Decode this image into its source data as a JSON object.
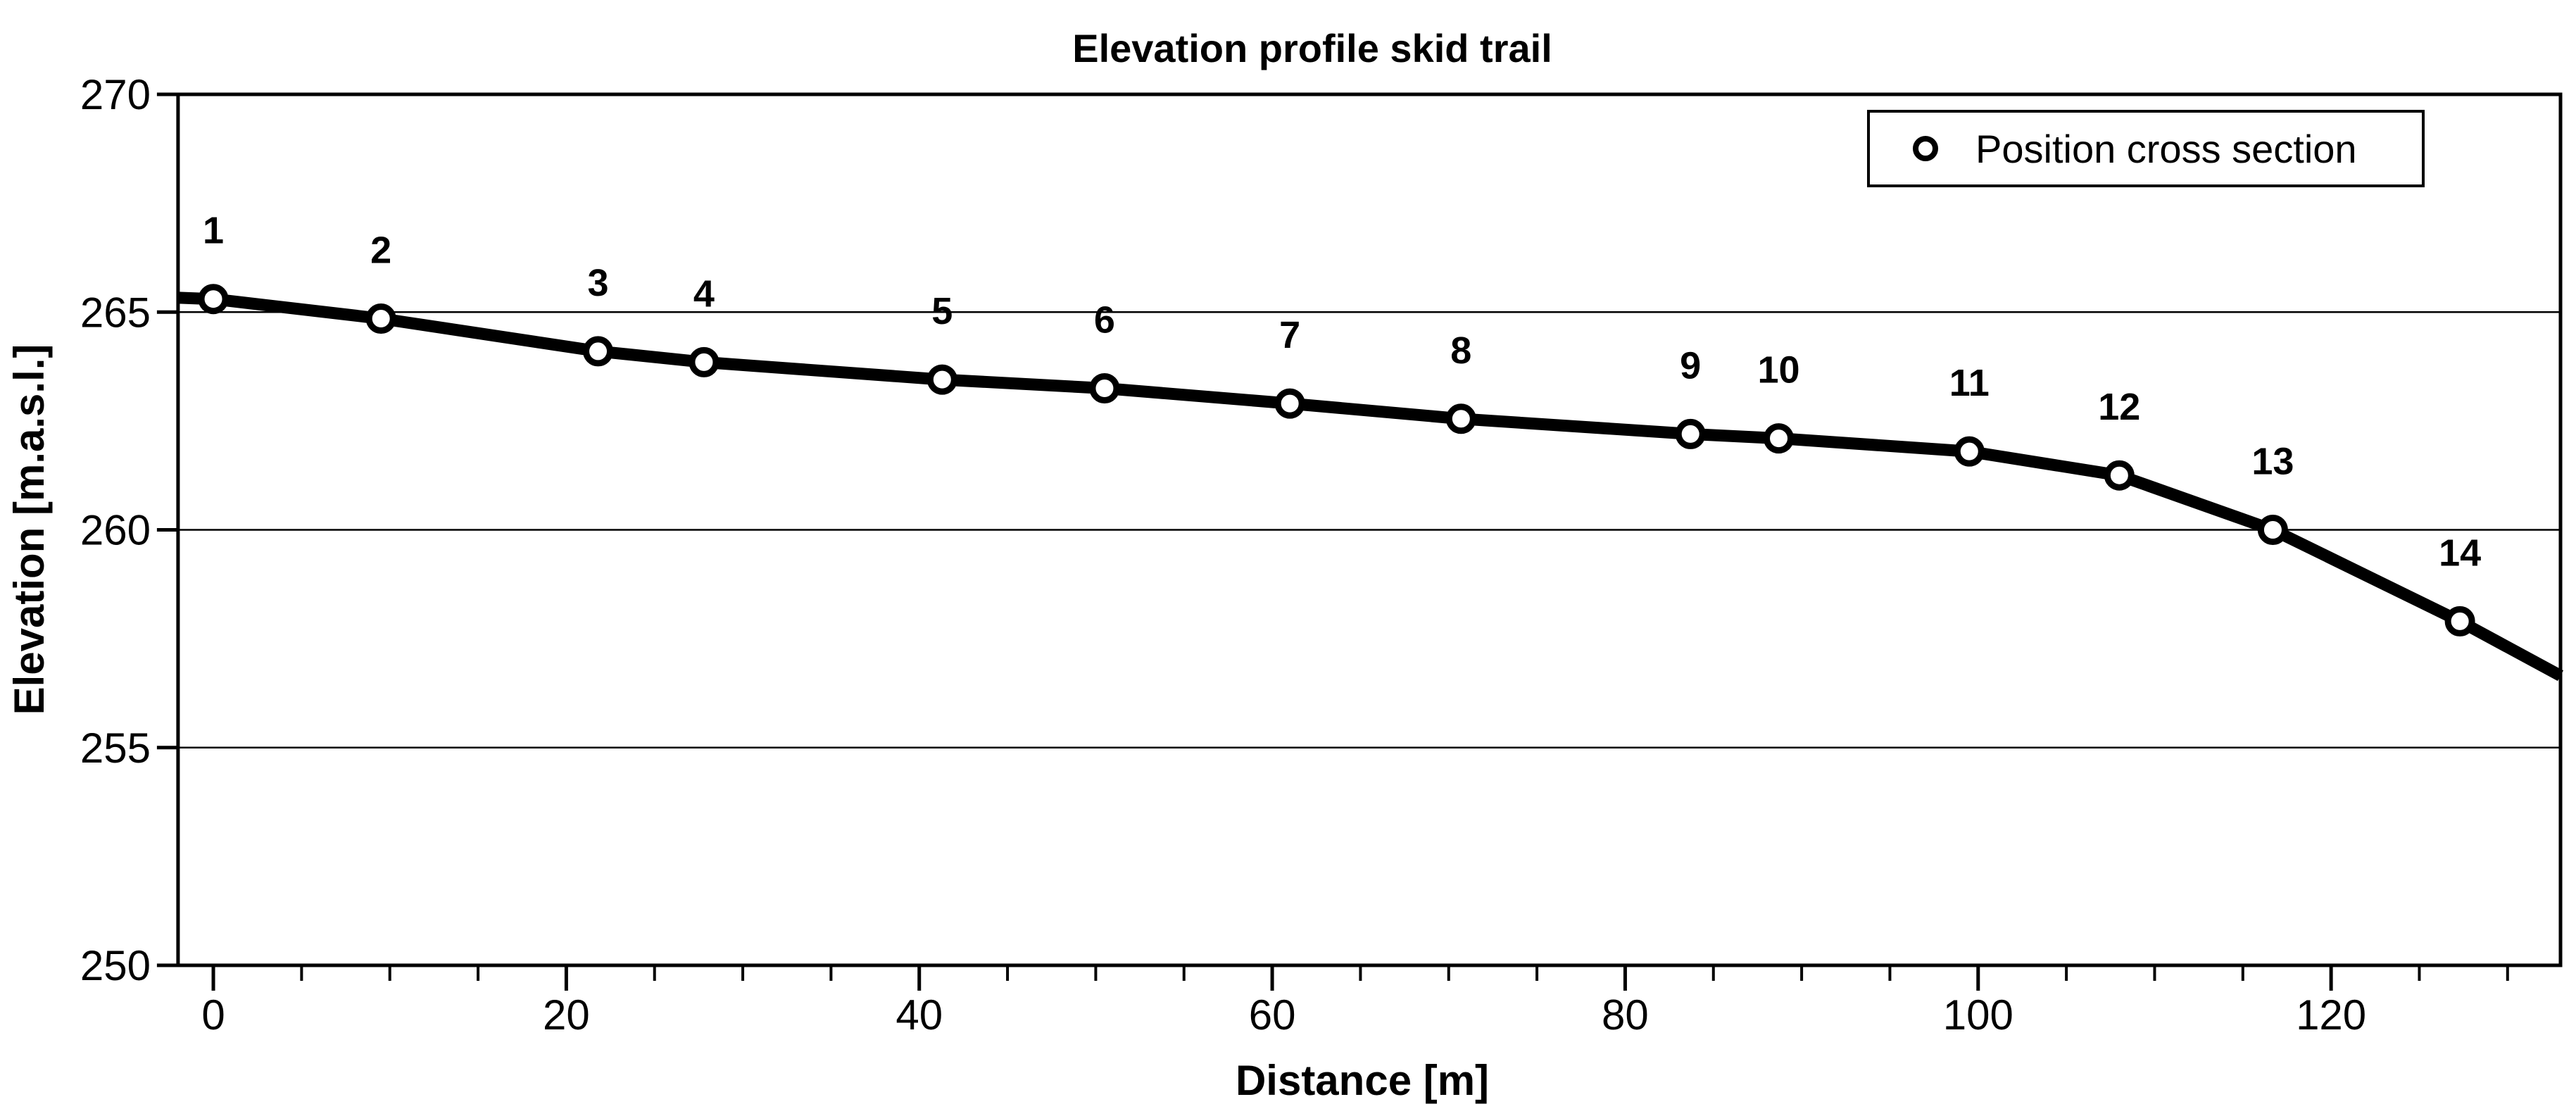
{
  "chart_data": {
    "type": "line",
    "title": "Elevation profile skid trail",
    "xlabel": "Distance [m]",
    "ylabel": "Elevation [m.a.s.l.]",
    "xlim": [
      -2,
      133
    ],
    "ylim": [
      250,
      270
    ],
    "x_major_ticks": [
      0,
      20,
      40,
      60,
      80,
      100,
      120
    ],
    "x_minor_tick_step": 5,
    "x_minor_tick_min": 0,
    "x_minor_tick_max": 130,
    "y_ticks": [
      250,
      255,
      260,
      265,
      270
    ],
    "y_gridlines": [
      255,
      260,
      265
    ],
    "grid": "horizontal-only",
    "legend_position": "top-right",
    "legend": [
      {
        "label": "Position cross section",
        "marker": "open-circle"
      }
    ],
    "series": [
      {
        "name": "Position cross section",
        "marker": "open-circle",
        "points": [
          {
            "label": "1",
            "distance_m": 0,
            "elevation_masl": 265.3
          },
          {
            "label": "2",
            "distance_m": 9.5,
            "elevation_masl": 264.85
          },
          {
            "label": "3",
            "distance_m": 21.8,
            "elevation_masl": 264.1
          },
          {
            "label": "4",
            "distance_m": 27.8,
            "elevation_masl": 263.85
          },
          {
            "label": "5",
            "distance_m": 41.3,
            "elevation_masl": 263.45
          },
          {
            "label": "6",
            "distance_m": 50.5,
            "elevation_masl": 263.25
          },
          {
            "label": "7",
            "distance_m": 61,
            "elevation_masl": 262.9
          },
          {
            "label": "8",
            "distance_m": 70.7,
            "elevation_masl": 262.55
          },
          {
            "label": "9",
            "distance_m": 83.7,
            "elevation_masl": 262.2
          },
          {
            "label": "10",
            "distance_m": 88.7,
            "elevation_masl": 262.1
          },
          {
            "label": "11",
            "distance_m": 99.5,
            "elevation_masl": 261.8
          },
          {
            "label": "12",
            "distance_m": 108,
            "elevation_masl": 261.25
          },
          {
            "label": "13",
            "distance_m": 116.7,
            "elevation_masl": 260.0
          },
          {
            "label": "14",
            "distance_m": 127.3,
            "elevation_masl": 257.9
          }
        ],
        "line_start": {
          "distance_m": -2,
          "elevation_masl": 265.33
        },
        "line_end": {
          "distance_m": 133,
          "elevation_masl": 256.65
        }
      }
    ]
  },
  "colors": {
    "line": "#000000",
    "marker_fill": "#ffffff",
    "text": "#000000",
    "grid": "#000000",
    "frame": "#000000",
    "background": "#ffffff"
  }
}
